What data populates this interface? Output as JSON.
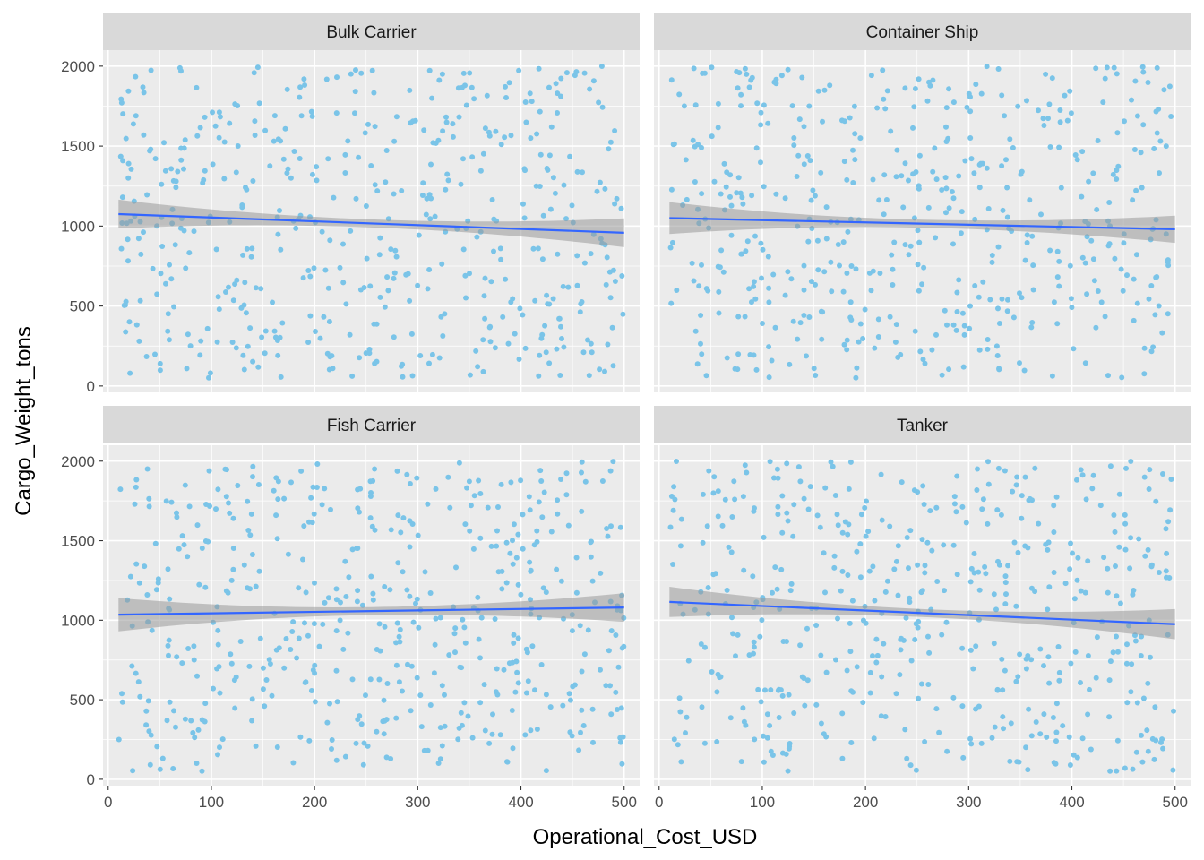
{
  "chart_data": {
    "type": "scatter",
    "facet_layout": "2x2 grid",
    "xlabel": "Operational_Cost_USD",
    "ylabel": "Cargo_Weight_tons",
    "xlim": [
      -5,
      515
    ],
    "ylim": [
      -40,
      2100
    ],
    "x_ticks": [
      0,
      100,
      200,
      300,
      400,
      500
    ],
    "y_ticks": [
      0,
      500,
      1000,
      1500,
      2000
    ],
    "grid": true,
    "colors": {
      "points": "#7ac4e8",
      "fit_line": "#3366ff",
      "confidence_band": "#999999",
      "panel_background": "#ebebeb",
      "strip_background": "#d9d9d9",
      "grid": "#ffffff"
    },
    "overlay": "linear fit with confidence band",
    "points_per_panel": 500,
    "x_range": [
      10,
      500
    ],
    "y_range": [
      50,
      2000
    ],
    "facets": [
      {
        "name": "Bulk Carrier",
        "fit": {
          "x": [
            10,
            500
          ],
          "y": [
            1075,
            958
          ]
        },
        "band_halfwidth": {
          "start": 90,
          "middle": 25,
          "end": 90
        }
      },
      {
        "name": "Container Ship",
        "fit": {
          "x": [
            10,
            500
          ],
          "y": [
            1050,
            980
          ]
        },
        "band_halfwidth": {
          "start": 100,
          "middle": 25,
          "end": 85
        }
      },
      {
        "name": "Fish Carrier",
        "fit": {
          "x": [
            10,
            500
          ],
          "y": [
            1035,
            1080
          ]
        },
        "band_halfwidth": {
          "start": 105,
          "middle": 25,
          "end": 90
        }
      },
      {
        "name": "Tanker",
        "fit": {
          "x": [
            10,
            500
          ],
          "y": [
            1115,
            975
          ]
        },
        "band_halfwidth": {
          "start": 95,
          "middle": 25,
          "end": 95
        }
      }
    ]
  }
}
